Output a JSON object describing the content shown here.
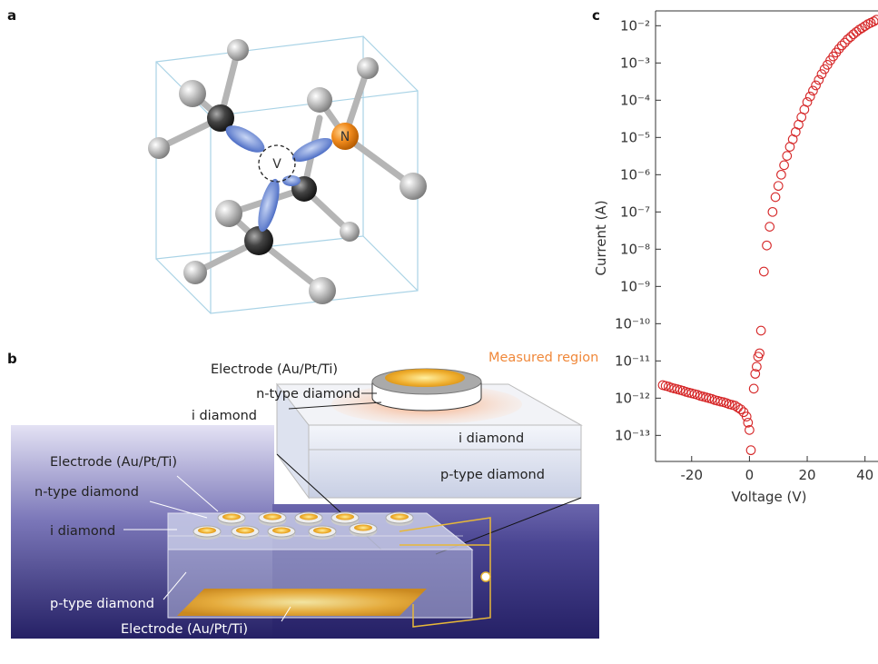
{
  "panel_a": {
    "label": "a",
    "vacancy": "V",
    "nitrogen": "N"
  },
  "panel_b": {
    "label": "b",
    "inset": {
      "electrode": "Electrode (Au/Pt/Ti)",
      "measured_region": "Measured region",
      "n_type": "n-type diamond",
      "i_diamond_left": "i diamond",
      "i_diamond_block": "i diamond",
      "p_type": "p-type diamond"
    },
    "device": {
      "electrode_top": "Electrode (Au/Pt/Ti)",
      "n_type": "n-type diamond",
      "i_diamond": "i diamond",
      "p_type": "p-type diamond",
      "electrode_bottom": "Electrode (Au/Pt/Ti)"
    }
  },
  "chart_data": {
    "type": "scatter",
    "panel_label": "c",
    "x_label": "Voltage (V)",
    "y_label": "Current (A)",
    "log_y": true,
    "color": "#d62728",
    "xlim": [
      -32.5,
      44.5
    ],
    "ylim": [
      2e-14,
      0.025
    ],
    "xticks": [
      -20,
      0,
      20,
      40
    ],
    "yticks": [
      {
        "value": 1e-13,
        "label": "10⁻¹³"
      },
      {
        "value": 1e-12,
        "label": "10⁻¹²"
      },
      {
        "value": 1e-11,
        "label": "10⁻¹¹"
      },
      {
        "value": 1e-10,
        "label": "10⁻¹⁰"
      },
      {
        "value": 1e-09,
        "label": "10⁻⁹"
      },
      {
        "value": 1e-08,
        "label": "10⁻⁸"
      },
      {
        "value": 1e-07,
        "label": "10⁻⁷"
      },
      {
        "value": 1e-06,
        "label": "10⁻⁶"
      },
      {
        "value": 1e-05,
        "label": "10⁻⁵"
      },
      {
        "value": 0.0001,
        "label": "10⁻⁴"
      },
      {
        "value": 0.001,
        "label": "10⁻³"
      },
      {
        "value": 0.01,
        "label": "10⁻²"
      }
    ],
    "x": [
      -30,
      -29,
      -28,
      -27,
      -26,
      -25,
      -24,
      -23,
      -22,
      -21,
      -20,
      -19,
      -18,
      -17,
      -16,
      -15,
      -14,
      -13,
      -12,
      -11,
      -10,
      -9,
      -8,
      -7,
      -6,
      -5,
      -4,
      -3,
      -2,
      -1,
      -0.5,
      0,
      0.5,
      1.5,
      2,
      2.5,
      3,
      3.5,
      4,
      5,
      6,
      7,
      8,
      9,
      10,
      11,
      12,
      13,
      14,
      15,
      16,
      17,
      18,
      19,
      20,
      21,
      22,
      23,
      24,
      25,
      26,
      27,
      28,
      29,
      30,
      31,
      32,
      33,
      34,
      35,
      36,
      37,
      38,
      39,
      40,
      41,
      42,
      43,
      44
    ],
    "values": [
      2.24e-12,
      2.14e-12,
      2.04e-12,
      1.91e-12,
      1.82e-12,
      1.74e-12,
      1.66e-12,
      1.58e-12,
      1.48e-12,
      1.41e-12,
      1.35e-12,
      1.29e-12,
      1.23e-12,
      1.15e-12,
      1.1e-12,
      1.05e-12,
      1e-12,
      9.5e-13,
      8.9e-13,
      8.5e-13,
      8.1e-13,
      7.8e-13,
      7.4e-13,
      6.9e-13,
      6.6e-13,
      6.3e-13,
      5.6e-13,
      5e-13,
      4.2e-13,
      3.2e-13,
      2.2e-13,
      1.4e-13,
      4e-14,
      1.8e-12,
      4.5e-12,
      7e-12,
      1.3e-11,
      1.6e-11,
      6.5e-11,
      2.5e-09,
      1.26e-08,
      4e-08,
      1e-07,
      2.5e-07,
      5e-07,
      1e-06,
      1.8e-06,
      3.2e-06,
      5.6e-06,
      8.9e-06,
      1.4e-05,
      2.2e-05,
      3.5e-05,
      5.6e-05,
      8.9e-05,
      0.000126,
      0.00018,
      0.00025,
      0.00035,
      0.0005,
      0.00068,
      0.00089,
      0.00117,
      0.0015,
      0.0019,
      0.0024,
      0.00295,
      0.0035,
      0.0043,
      0.005,
      0.0059,
      0.0068,
      0.0078,
      0.0087,
      0.0098,
      0.011,
      0.012,
      0.013,
      0.0145
    ]
  }
}
